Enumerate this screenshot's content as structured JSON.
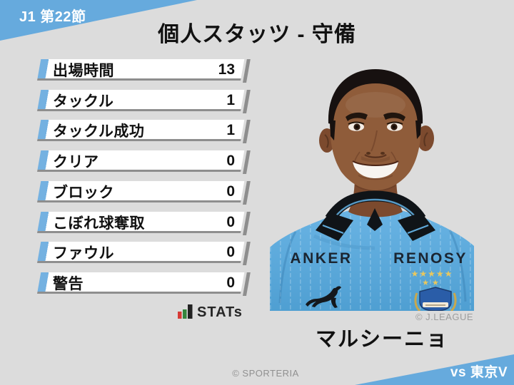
{
  "badge_top": {
    "text": "J1 第22節"
  },
  "header": {
    "title": "個人スタッツ - 守備"
  },
  "stats": [
    {
      "label": "出場時間",
      "value": "13"
    },
    {
      "label": "タックル",
      "value": "1"
    },
    {
      "label": "タックル成功",
      "value": "1"
    },
    {
      "label": "クリア",
      "value": "0"
    },
    {
      "label": "ブロック",
      "value": "0"
    },
    {
      "label": "こぼれ球奪取",
      "value": "0"
    },
    {
      "label": "ファウル",
      "value": "0"
    },
    {
      "label": "警告",
      "value": "0"
    }
  ],
  "stats_logo": {
    "text": "STATs"
  },
  "photo": {
    "sponsor_left": "ANKER",
    "sponsor_right": "RENOSY",
    "stars_row1": "★★★★★",
    "stars_row2": "★★",
    "credit": "© J.LEAGUE"
  },
  "player": {
    "name": "マルシーニョ"
  },
  "footer": {
    "site_credit": "© SPORTERIA"
  },
  "badge_bottom": {
    "text": "vs 東京V"
  },
  "colors": {
    "background": "#dcdcdc",
    "accent_blue": "#66aadd",
    "row_stripe_blue": "#74b1e1",
    "row_shadow_gray": "#8e8e8e",
    "jersey_blue": "#58aadc",
    "stats_logo_red": "#d63a35",
    "stats_logo_green": "#35853d",
    "text_dark": "#111111",
    "credit_gray": "#909090"
  },
  "chart_data": {
    "type": "table",
    "title": "個人スタッツ - 守備",
    "categories": [
      "出場時間",
      "タックル",
      "タックル成功",
      "クリア",
      "ブロック",
      "こぼれ球奪取",
      "ファウル",
      "警告"
    ],
    "values": [
      13,
      1,
      1,
      0,
      0,
      0,
      0,
      0
    ]
  }
}
